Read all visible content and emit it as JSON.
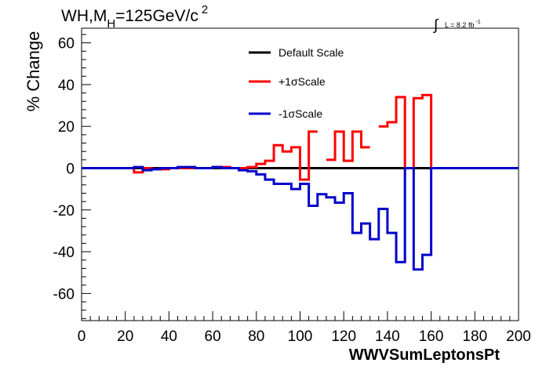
{
  "chart_data": {
    "type": "line",
    "title": "WH,M",
    "title_sub": "H",
    "title_rest": "=125GeV/c",
    "title_sup": "2",
    "lumi": {
      "integral": "∫",
      "text": "L = 8.2 fb",
      "sup": "-1"
    },
    "xlabel": "WWVSumLeptonsPt",
    "ylabel": "% Change",
    "xlim": [
      0,
      200
    ],
    "ylim": [
      -73,
      67
    ],
    "xticks": [
      0,
      20,
      40,
      60,
      80,
      100,
      120,
      140,
      160,
      180,
      200
    ],
    "yticks": [
      -60,
      -40,
      -20,
      0,
      20,
      40,
      60
    ],
    "legend": [
      {
        "label": "Default Scale",
        "color": "#000000"
      },
      {
        "label": "+1σScale",
        "color": "#ff0000"
      },
      {
        "label": "-1σScale",
        "color": "#0000cc"
      }
    ],
    "bin_edges": [
      0,
      4,
      8,
      12,
      16,
      20,
      24,
      28,
      32,
      36,
      40,
      44,
      48,
      52,
      56,
      60,
      64,
      68,
      72,
      76,
      80,
      84,
      88,
      92,
      96,
      100,
      104,
      108,
      112,
      116,
      120,
      124,
      128,
      132,
      136,
      140,
      144,
      148,
      152,
      156,
      160,
      164,
      168,
      172,
      176,
      180,
      184,
      188,
      192,
      196,
      200
    ],
    "series": [
      {
        "name": "Default Scale",
        "color": "#000000",
        "values": [
          0,
          0,
          0,
          0,
          0,
          0,
          0,
          0,
          0,
          0,
          0,
          0,
          0,
          0,
          0,
          0,
          0,
          0,
          0,
          0,
          0,
          0,
          0,
          0,
          0,
          0,
          0,
          0,
          0,
          0,
          0,
          0,
          0,
          0,
          0,
          0,
          0,
          0,
          0,
          0,
          0,
          0,
          0,
          0,
          0,
          0,
          0,
          0,
          0,
          0
        ]
      },
      {
        "name": "+1σScale",
        "color": "#ff0000",
        "values": [
          0,
          0,
          0,
          0,
          0,
          0,
          -2,
          0,
          -0.5,
          -0.5,
          0,
          0,
          0,
          0,
          0,
          0.5,
          0.5,
          0,
          0,
          0.5,
          2,
          3.5,
          11,
          8,
          10,
          -5.5,
          17.5,
          null,
          4,
          17.5,
          3.5,
          17.5,
          10,
          null,
          20,
          22,
          34,
          0,
          33.5,
          35,
          0,
          0,
          0,
          0,
          0,
          0,
          0,
          0,
          0,
          0
        ]
      },
      {
        "name": "-1σScale",
        "color": "#0000cc",
        "values": [
          0,
          0,
          0,
          0,
          0,
          0,
          0.5,
          -1,
          -0.5,
          0,
          0,
          0.5,
          0.5,
          0,
          0,
          0.5,
          0,
          0,
          -1,
          -1.5,
          -3,
          -5.5,
          -7.5,
          -7.5,
          -10,
          -7.5,
          -18,
          -12.5,
          -14,
          -16.5,
          -12,
          -31,
          -26.5,
          -34,
          -19.5,
          -31,
          -45,
          0,
          -48.5,
          -41.5,
          0,
          0,
          0,
          0,
          0,
          0,
          0,
          0,
          0,
          0
        ]
      }
    ]
  }
}
